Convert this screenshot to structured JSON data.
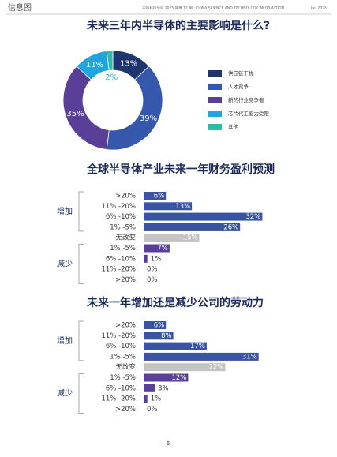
{
  "header": {
    "section": "信息图",
    "publication": "中国科技信息 2025 年第 12 期 · CHINA SCIENCE AND TECHNOLOGY INFORMATION",
    "date": "Jun.2025"
  },
  "footer": {
    "page": "—6—"
  },
  "chart_data": [
    {
      "type": "donut",
      "title": "未来三年内半导体的主要影响是什么?",
      "categories": [
        "供应链干扰",
        "人才竞争",
        "新的行业竞争者",
        "芯片代工能力受限",
        "其他"
      ],
      "values": [
        13,
        39,
        35,
        11,
        2
      ],
      "value_labels": [
        "13%",
        "39%",
        "35%",
        "11%",
        "2%"
      ],
      "colors": [
        "#1f3570",
        "#3558ad",
        "#5a3f98",
        "#1fa6e0",
        "#2bbda8"
      ]
    },
    {
      "type": "grouped-hbar",
      "title": "全球半导体产业未来一年财务盈利预测",
      "groups": [
        {
          "name": "增加",
          "color": "#3a54a4",
          "categories": [
            ">20%",
            "11% -20%",
            "6% -10%",
            "1% -5%"
          ],
          "values": [
            6,
            13,
            32,
            26
          ],
          "value_labels": [
            "6%",
            "13%",
            "32%",
            "26%"
          ]
        },
        {
          "color": "#c4c4c4",
          "categories": [
            "无改变"
          ],
          "values": [
            15
          ],
          "value_labels": [
            "15%"
          ]
        },
        {
          "name": "减少",
          "color": "#5a3f98",
          "categories": [
            "1% -5%",
            "6% -10%",
            "11% -20%",
            ">20%"
          ],
          "values": [
            7,
            1,
            0,
            0
          ],
          "value_labels": [
            "7%",
            "1%",
            "0%",
            "0%"
          ]
        }
      ]
    },
    {
      "type": "grouped-hbar",
      "title": "未来一年增加还是减少公司的劳动力",
      "groups": [
        {
          "name": "增加",
          "color": "#3a54a4",
          "categories": [
            ">20%",
            "11% -20%",
            "6% -10%",
            "1% -5%"
          ],
          "values": [
            6,
            8,
            17,
            31
          ],
          "value_labels": [
            "6%",
            "8%",
            "17%",
            "31%"
          ]
        },
        {
          "color": "#c4c4c4",
          "categories": [
            "无改变"
          ],
          "values": [
            22
          ],
          "value_labels": [
            "22%"
          ]
        },
        {
          "name": "减少",
          "color": "#5a3f98",
          "categories": [
            "1% -5%",
            "6% -10%",
            "11% -20%",
            ">20%"
          ],
          "values": [
            12,
            3,
            1,
            0
          ],
          "value_labels": [
            "12%",
            "3%",
            "1%",
            "0%"
          ]
        }
      ]
    }
  ]
}
